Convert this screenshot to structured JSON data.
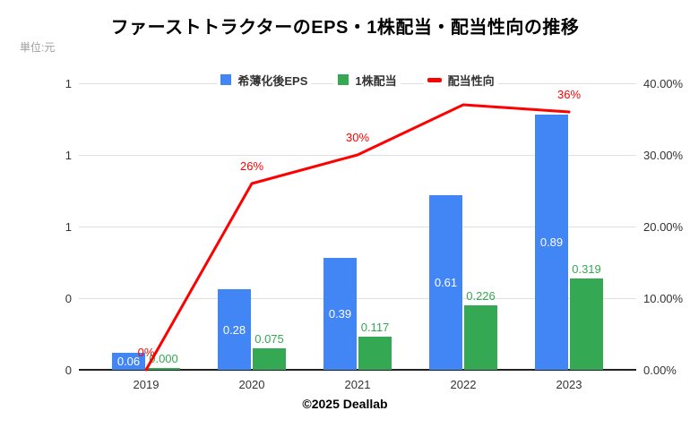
{
  "title": "ファーストトラクターのEPS・1株配当・配当性向の推移",
  "unit_label": "単位:元",
  "footer": {
    "copyright": "©2025 Deallab"
  },
  "legend": {
    "items": [
      {
        "label": "希薄化後EPS",
        "color": "#4285F4",
        "shape": "square"
      },
      {
        "label": "1株配当",
        "color": "#34A853",
        "shape": "square"
      },
      {
        "label": "配当性向",
        "color": "#FF0000",
        "shape": "dash"
      }
    ]
  },
  "colors": {
    "eps_bar": "#4285F4",
    "dividend_bar": "#34A853",
    "payout_line": "#FF0000",
    "grid": "#e0e0e0",
    "baseline": "#212121",
    "bar_label_inside": "#ffffff"
  },
  "chart_data": {
    "type": "bar",
    "subtype": "combo-bar-line-dual-axis",
    "title": "ファーストトラクターのEPS・1株配当・配当性向の推移",
    "unit": "元",
    "categories": [
      "2019",
      "2020",
      "2021",
      "2022",
      "2023"
    ],
    "series": [
      {
        "name": "希薄化後EPS",
        "render": "bar",
        "axis": "left",
        "color": "#4285F4",
        "values": [
          0.06,
          0.28,
          0.39,
          0.61,
          0.89
        ],
        "data_labels": [
          "0.06",
          "0.28",
          "0.39",
          "0.61",
          "0.89"
        ],
        "label_placement": "inside-center",
        "label_color": "#ffffff"
      },
      {
        "name": "1株配当",
        "render": "bar",
        "axis": "left",
        "color": "#34A853",
        "values": [
          0.0,
          0.075,
          0.117,
          0.226,
          0.319
        ],
        "data_labels": [
          "0.000",
          "0.075",
          "0.117",
          "0.226",
          "0.319"
        ],
        "label_placement": "above",
        "label_color": "#34A853"
      },
      {
        "name": "配当性向",
        "render": "line",
        "axis": "right",
        "color": "#FF0000",
        "values_percent": [
          0,
          26,
          30,
          37,
          36
        ],
        "data_labels": [
          "0%",
          "26%",
          "30%",
          "",
          "36%"
        ],
        "label_placement": "above",
        "label_color": "#FF0000"
      }
    ],
    "left_axis": {
      "range": [
        0,
        1
      ],
      "tick_labels_top_to_bottom": [
        "1",
        "1",
        "1",
        "0",
        "0"
      ]
    },
    "right_axis": {
      "range_percent": [
        0,
        40
      ],
      "tick_labels_top_to_bottom": [
        "40.00%",
        "30.00%",
        "20.00%",
        "10.00%",
        "0.00%"
      ]
    },
    "grid": "horizontal",
    "legend_position": "top-center"
  }
}
